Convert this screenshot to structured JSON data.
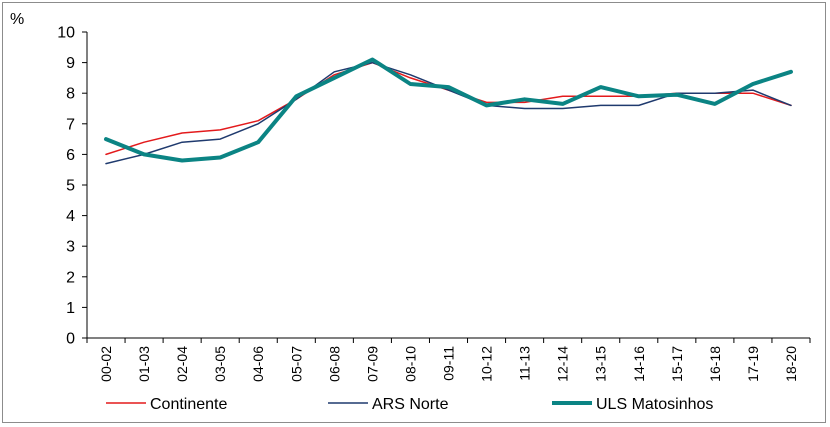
{
  "chart_data": {
    "type": "line",
    "ylabel": "%",
    "ylim": [
      0,
      10
    ],
    "yticks": [
      "0",
      "1",
      "2",
      "3",
      "4",
      "5",
      "6",
      "7",
      "8",
      "9",
      "10"
    ],
    "grid": false,
    "legend_position": "bottom",
    "categories": [
      "00-02",
      "01-03",
      "02-04",
      "03-05",
      "04-06",
      "05-07",
      "06-08",
      "07-09",
      "08-10",
      "09-11",
      "10-12",
      "11-13",
      "12-14",
      "13-15",
      "14-16",
      "15-17",
      "16-18",
      "17-19",
      "18-20"
    ],
    "series": [
      {
        "name": "Continente",
        "color": "#e31a1c",
        "width": 1.5,
        "values": [
          6.0,
          6.4,
          6.7,
          6.8,
          7.1,
          7.8,
          8.6,
          9.0,
          8.5,
          8.1,
          7.7,
          7.7,
          7.9,
          7.9,
          7.9,
          8.0,
          8.0,
          8.0,
          7.6
        ]
      },
      {
        "name": "ARS Norte",
        "color": "#1f3a6e",
        "width": 1.5,
        "values": [
          5.7,
          6.0,
          6.4,
          6.5,
          7.0,
          7.8,
          8.7,
          9.0,
          8.6,
          8.1,
          7.6,
          7.5,
          7.5,
          7.6,
          7.6,
          8.0,
          8.0,
          8.1,
          7.6
        ]
      },
      {
        "name": "ULS Matosinhos",
        "color": "#0b8484",
        "width": 4,
        "values": [
          6.5,
          6.0,
          5.8,
          5.9,
          6.4,
          7.9,
          8.5,
          9.1,
          8.3,
          8.2,
          7.6,
          7.8,
          7.65,
          8.2,
          7.9,
          7.95,
          7.65,
          8.3,
          8.7
        ]
      }
    ]
  }
}
